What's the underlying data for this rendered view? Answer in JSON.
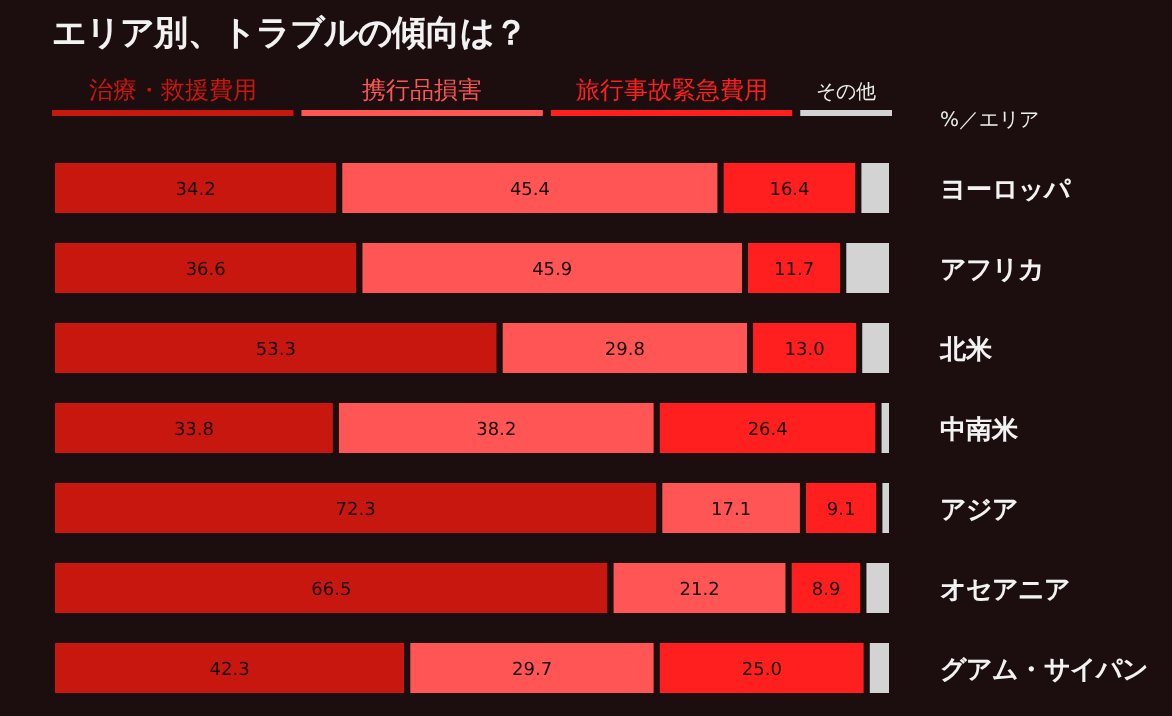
{
  "chart_data": {
    "type": "bar",
    "orientation": "horizontal",
    "stacked": true,
    "title": "エリア別、トラブルの傾向は？",
    "legend": "top",
    "xlim": [
      0,
      100
    ],
    "categories": [
      "ヨーロッパ",
      "アフリカ",
      "北米",
      "中南米",
      "アジア",
      "オセアニア",
      "グアム・サイパン"
    ],
    "series": [
      {
        "name": "治療・救援費用",
        "color": "#c8170f",
        "values": [
          34.2,
          36.6,
          53.3,
          33.8,
          72.3,
          66.5,
          42.3
        ],
        "value_labels": [
          "34.2",
          "36.6",
          "53.3",
          "33.8",
          "72.3",
          "66.5",
          "42.3"
        ]
      },
      {
        "name": "携行品損害",
        "color": "#ff5555",
        "values": [
          45.4,
          45.9,
          29.8,
          38.2,
          17.1,
          21.2,
          29.7
        ],
        "value_labels": [
          "45.4",
          "45.9",
          "29.8",
          "38.2",
          "17.1",
          "21.2",
          "29.7"
        ]
      },
      {
        "name": "旅行事故緊急費用",
        "color": "#ff1f1f",
        "values": [
          16.4,
          11.7,
          13.0,
          26.4,
          9.1,
          8.9,
          25.0
        ],
        "value_labels": [
          "16.4",
          "11.7",
          "13.0",
          "26.4",
          "9.1",
          "8.9",
          "25.0"
        ]
      },
      {
        "name": "その他",
        "color": "#d3d3d3",
        "values": [
          4.0,
          5.8,
          3.9,
          1.6,
          1.5,
          3.4,
          3.0
        ],
        "value_labels": [
          null,
          null,
          null,
          null,
          null,
          null,
          null
        ]
      }
    ],
    "annotations": [
      "%／エリア"
    ]
  }
}
